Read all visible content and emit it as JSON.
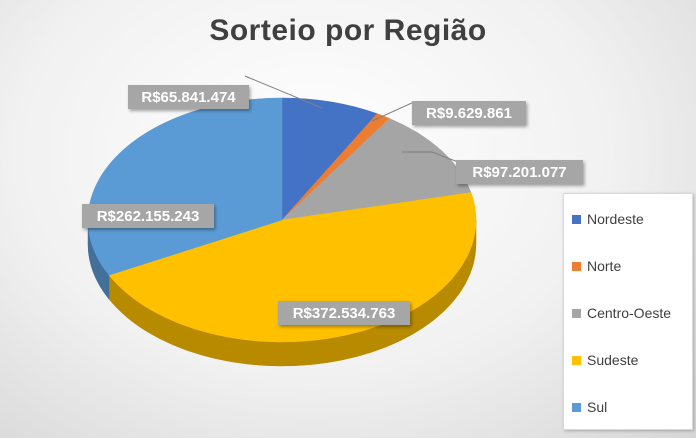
{
  "chart_data": {
    "type": "pie",
    "title": "Sorteio por Região",
    "categories": [
      "Nordeste",
      "Norte",
      "Centro-Oeste",
      "Sudeste",
      "Sul"
    ],
    "values": [
      65841474,
      9629861,
      97201077,
      372534763,
      262155243
    ],
    "value_labels": [
      "R$65.841.474",
      "R$9.629.861",
      "R$97.201.077",
      "R$372.534.763",
      "R$262.155.243"
    ],
    "colors": [
      "#4472c4",
      "#ed7d31",
      "#a5a5a5",
      "#ffc000",
      "#5b9bd5"
    ],
    "style": "3d",
    "legend_position": "right"
  }
}
